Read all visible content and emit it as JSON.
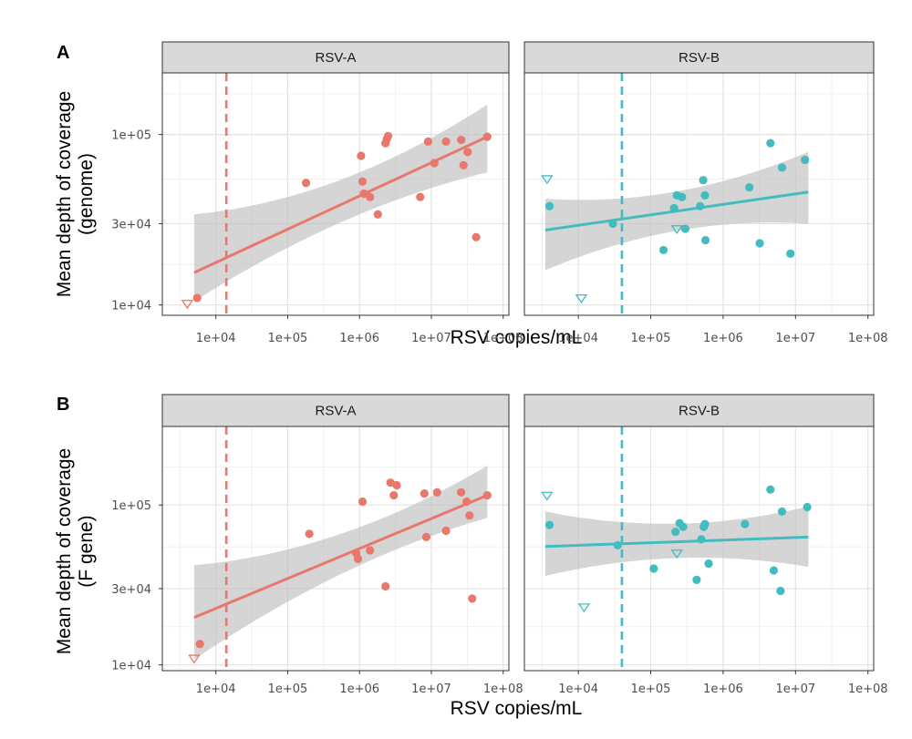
{
  "colors": {
    "rsv_a": "#E8776C",
    "rsv_b": "#43BCC1",
    "ribbon": "#BEBEBE"
  },
  "chart_data": [
    {
      "type": "scatter",
      "panel_label": "A",
      "ylabel_lines": [
        "Mean depth of coverage",
        "(genome)"
      ],
      "xlabel": "RSV copies/mL",
      "x_scale": "log10",
      "y_scale": "log10",
      "xlim": [
        1800,
        120000000
      ],
      "ylim": [
        8700,
        230000
      ],
      "x_ticks": [
        10000,
        100000,
        1000000,
        10000000,
        100000000
      ],
      "x_tick_labels": [
        "1e+04",
        "1e+05",
        "1e+06",
        "1e+07",
        "1e+08"
      ],
      "y_ticks": [
        10000,
        30000,
        100000
      ],
      "y_tick_labels": [
        "1e+04",
        "3e+04",
        "1e+05"
      ],
      "facets": [
        {
          "strip": "RSV-A",
          "color_key": "rsv_a",
          "threshold_x": 14000,
          "points": [
            [
              5500,
              11000
            ],
            [
              180000,
              52000
            ],
            [
              1050000,
              75000
            ],
            [
              1100000,
              53000
            ],
            [
              1150000,
              45000
            ],
            [
              1400000,
              43000
            ],
            [
              1800000,
              34000
            ],
            [
              2300000,
              89000
            ],
            [
              2400000,
              94000
            ],
            [
              2500000,
              98000
            ],
            [
              7000000,
              43000
            ],
            [
              9000000,
              91000
            ],
            [
              11000000,
              68000
            ],
            [
              16000000,
              91000
            ],
            [
              26000000,
              93000
            ],
            [
              28000000,
              66000
            ],
            [
              32000000,
              79000
            ],
            [
              42000000,
              25000
            ],
            [
              60000000,
              97000
            ]
          ],
          "censored": [
            [
              4000,
              10200
            ]
          ],
          "fit": {
            "x": [
              5000,
              60000000
            ],
            "y": [
              15500,
              97000
            ]
          },
          "band": {
            "x": [
              5000,
              60000000
            ],
            "upper": [
              34000,
              150000
            ],
            "lower": [
              10500,
              60000
            ]
          }
        },
        {
          "strip": "RSV-B",
          "color_key": "rsv_b",
          "threshold_x": 40000,
          "points": [
            [
              4000,
              38000
            ],
            [
              30000,
              30000
            ],
            [
              150000,
              21000
            ],
            [
              210000,
              37000
            ],
            [
              230000,
              44000
            ],
            [
              270000,
              43000
            ],
            [
              300000,
              28000
            ],
            [
              480000,
              38000
            ],
            [
              530000,
              54000
            ],
            [
              560000,
              44000
            ],
            [
              570000,
              24000
            ],
            [
              2300000,
              49000
            ],
            [
              3200000,
              23000
            ],
            [
              4500000,
              89000
            ],
            [
              6500000,
              64000
            ],
            [
              8500000,
              20000
            ],
            [
              13500000,
              71000
            ]
          ],
          "censored": [
            [
              3700,
              55000
            ],
            [
              11000,
              11000
            ],
            [
              230000,
              28000
            ]
          ],
          "fit": {
            "x": [
              3500,
              15000000
            ],
            "y": [
              27500,
              46000
            ]
          },
          "band": {
            "x": [
              3500,
              15000000
            ],
            "upper": [
              42000,
              79000
            ],
            "lower": [
              16000,
              30000
            ]
          }
        }
      ]
    },
    {
      "type": "scatter",
      "panel_label": "B",
      "ylabel_lines": [
        "Mean depth of coverage",
        "(F gene)"
      ],
      "xlabel": "RSV copies/mL",
      "x_scale": "log10",
      "y_scale": "log10",
      "xlim": [
        1800,
        120000000
      ],
      "ylim": [
        9200,
        310000
      ],
      "x_ticks": [
        10000,
        100000,
        1000000,
        10000000,
        100000000
      ],
      "x_tick_labels": [
        "1e+04",
        "1e+05",
        "1e+06",
        "1e+07",
        "1e+08"
      ],
      "y_ticks": [
        10000,
        30000,
        100000
      ],
      "y_tick_labels": [
        "1e+04",
        "3e+04",
        "1e+05"
      ],
      "facets": [
        {
          "strip": "RSV-A",
          "color_key": "rsv_a",
          "threshold_x": 14000,
          "points": [
            [
              6000,
              13500
            ],
            [
              200000,
              66000
            ],
            [
              900000,
              50000
            ],
            [
              950000,
              46000
            ],
            [
              1100000,
              105000
            ],
            [
              1400000,
              52000
            ],
            [
              2300000,
              31000
            ],
            [
              2700000,
              138000
            ],
            [
              3000000,
              115000
            ],
            [
              3300000,
              133000
            ],
            [
              8000000,
              118000
            ],
            [
              8500000,
              63000
            ],
            [
              12000000,
              120000
            ],
            [
              16000000,
              69000
            ],
            [
              26000000,
              120000
            ],
            [
              31000000,
              105000
            ],
            [
              34000000,
              86000
            ],
            [
              37000000,
              26000
            ],
            [
              60000000,
              115000
            ]
          ],
          "censored": [
            [
              5000,
              11000
            ]
          ],
          "fit": {
            "x": [
              5000,
              60000000
            ],
            "y": [
              19800,
              115000
            ]
          },
          "band": {
            "x": [
              5000,
              60000000
            ],
            "upper": [
              42000,
              176000
            ],
            "lower": [
              10800,
              83000
            ]
          }
        },
        {
          "strip": "RSV-B",
          "color_key": "rsv_b",
          "threshold_x": 40000,
          "points": [
            [
              4000,
              75000
            ],
            [
              35000,
              56000
            ],
            [
              110000,
              40000
            ],
            [
              220000,
              68000
            ],
            [
              250000,
              77000
            ],
            [
              280000,
              73000
            ],
            [
              430000,
              34000
            ],
            [
              500000,
              61000
            ],
            [
              540000,
              73000
            ],
            [
              560000,
              76000
            ],
            [
              630000,
              43000
            ],
            [
              2000000,
              76000
            ],
            [
              4500000,
              125000
            ],
            [
              5000000,
              39000
            ],
            [
              6200000,
              29000
            ],
            [
              6500000,
              91000
            ],
            [
              14500000,
              97000
            ]
          ],
          "censored": [
            [
              3700,
              115000
            ],
            [
              12000,
              23000
            ],
            [
              230000,
              50000
            ]
          ],
          "fit": {
            "x": [
              3500,
              15000000
            ],
            "y": [
              55000,
              63000
            ]
          },
          "band": {
            "x": [
              3500,
              15000000
            ],
            "upper": [
              91000,
              98000
            ],
            "lower": [
              36000,
              41000
            ]
          }
        }
      ]
    }
  ]
}
